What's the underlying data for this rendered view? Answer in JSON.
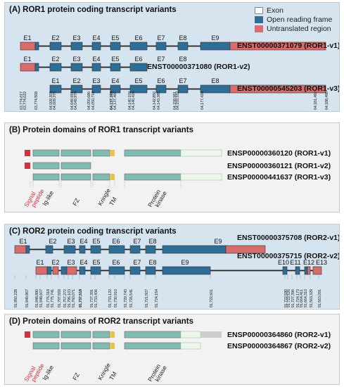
{
  "colors": {
    "panel_ror1": "#d6e4f0",
    "panel_domain": "#f2f2f2",
    "exon": "#ffffff",
    "orf": "#2e6e96",
    "utr": "#d86b6b",
    "teal": "#7fbab3",
    "signal": "#d62f3d",
    "tm": "#e8c253",
    "grey_tail": "#cccccc",
    "signal_text": "#cc3340"
  },
  "legend": [
    {
      "key": "exon",
      "label": "Exon"
    },
    {
      "key": "orf",
      "label": "Open reading frame"
    },
    {
      "key": "utr",
      "label": "Untranslated region"
    }
  ],
  "panelA": {
    "title": "(A) ROR1 protein coding transcript variants",
    "rows": [
      {
        "label": "ENST00000371079 (ROR1-v1)",
        "exons": [
          "E1",
          "E2",
          "E3",
          "E4",
          "E5",
          "E6",
          "E7",
          "E8",
          "E9"
        ]
      },
      {
        "label": "ENST00000371080 (ROR1-v2)",
        "exons": [
          "E1",
          "E2",
          "E3",
          "E4",
          "E5",
          "E6",
          "E7",
          "E8"
        ]
      },
      {
        "label": "ENST00000545203 (ROR1-v3)",
        "exons": [
          "E1",
          "E2",
          "E3",
          "E4",
          "E5",
          "E6",
          "E7",
          "E8"
        ]
      }
    ],
    "coords": [
      "63,774,017",
      "63,774,022",
      "63,774,508",
      "64,009,303",
      "64,009,376",
      "64,049,691",
      "64,049,978",
      "64,050,686",
      "64,050,718",
      "64,137,389",
      "64,137,466",
      "64,140,109",
      "64,140,426",
      "64,142,850",
      "64,143,385",
      "64,158,981",
      "64,159,332",
      "64,177,428",
      "64,181,492",
      "64,188,498"
    ],
    "bold_coord": "64,137,389"
  },
  "panelB": {
    "title": "(B) Protein domains of ROR1 transcript variants",
    "rows": [
      {
        "label": "ENSP00000360120 (ROR1-v1)"
      },
      {
        "label": "ENSP00000360121 (ROR1-v2)"
      },
      {
        "label": "ENSP00000441637 (ROR1-v3)"
      }
    ],
    "domains": [
      "Signal peptide",
      "Ig-like",
      "FZ",
      "Kringle",
      "TM",
      "Protein kinase"
    ]
  },
  "panelC": {
    "title": "(C) ROR2 protein coding transcript variants",
    "rows": [
      {
        "label": "ENST00000375708 (ROR2-v1)",
        "exons": [
          "E1",
          "E2",
          "E3",
          "E4",
          "E5",
          "E6",
          "E7",
          "E8",
          "E9"
        ]
      },
      {
        "label": "ENST00000375715 (ROR2-v2)",
        "exons": [
          "E1",
          "E2",
          "E3",
          "E4",
          "E5",
          "E6",
          "E7",
          "E8",
          "E9",
          "E10",
          "E11",
          "E12",
          "E13"
        ]
      }
    ],
    "coords": [
      "91,950,228",
      "91,949,867",
      "91,948,880",
      "91,948,607",
      "91,776,318",
      "91,775,741",
      "91,797,559",
      "91,757,272",
      "91,796,103",
      "91,760,071",
      "91,737,518",
      "91,737,391",
      "91,733,436",
      "91,733,122",
      "91,730,910",
      "91,729,743",
      "91,726,541",
      "91,721,507",
      "91,724,154",
      "91,722,601",
      "91,722,580",
      "91,722,526",
      "91,727,396",
      "91,724,173",
      "91,664,411",
      "91,664,310",
      "91,563,329",
      "91,563,091"
    ],
    "bold_coord": "91,737,518"
  },
  "panelD": {
    "title": "(D) Protein domains of ROR2 transcript variants",
    "rows": [
      {
        "label": "ENSP00000364860 (ROR2-v1)"
      },
      {
        "label": "ENSP00000364867 (ROR2-v2)"
      }
    ],
    "domains": [
      "Signal peptide",
      "Ig-like",
      "FZ",
      "Kringle",
      "TM",
      "Protein kinase"
    ]
  }
}
